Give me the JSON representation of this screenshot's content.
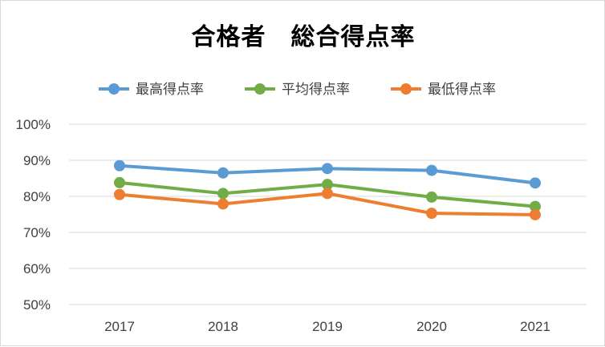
{
  "chart_data": {
    "type": "line",
    "title": "合格者　総合得点率",
    "categories": [
      "2017",
      "2018",
      "2019",
      "2020",
      "2021"
    ],
    "yticks": [
      "50%",
      "60%",
      "70%",
      "80%",
      "90%",
      "100%"
    ],
    "ylim": [
      50,
      100
    ],
    "grid": true,
    "legend_position": "top",
    "series": [
      {
        "name": "最高得点率",
        "color": "#5b9bd5",
        "values": [
          88.5,
          86.5,
          87.7,
          87.2,
          83.7
        ]
      },
      {
        "name": "平均得点率",
        "color": "#70ad47",
        "values": [
          83.8,
          80.8,
          83.3,
          79.8,
          77.2
        ]
      },
      {
        "name": "最低得点率",
        "color": "#ed7d31",
        "values": [
          80.5,
          77.9,
          80.8,
          75.3,
          74.9
        ]
      }
    ]
  }
}
